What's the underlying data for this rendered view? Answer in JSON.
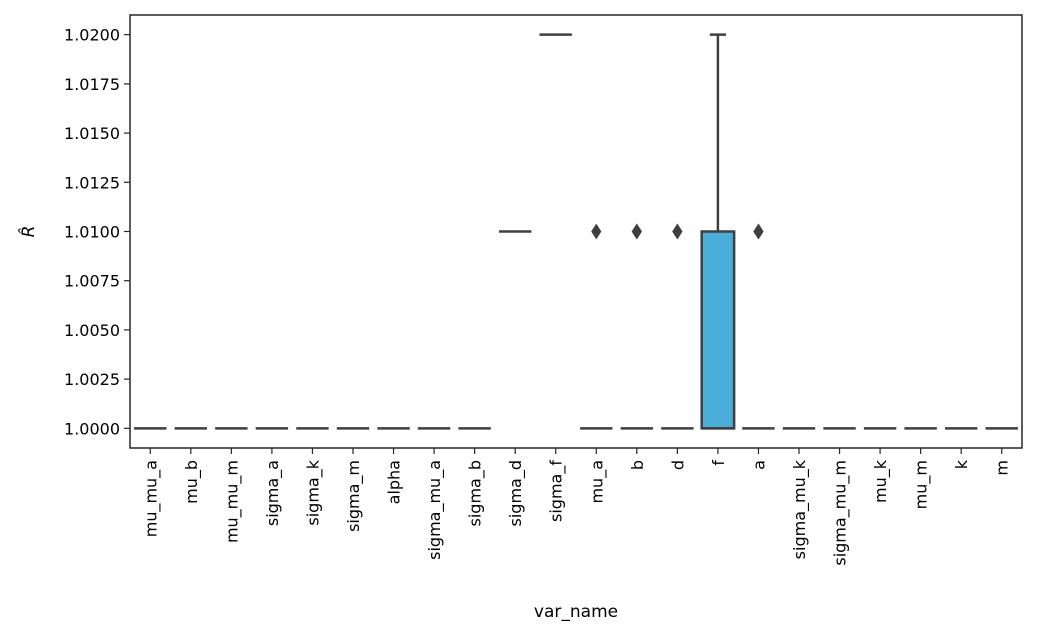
{
  "chart_data": {
    "type": "box",
    "xlabel": "var_name",
    "ylabel": "R̂",
    "ylim": [
      0.999,
      1.021
    ],
    "yticks": [
      "1.0000",
      "1.0025",
      "1.0050",
      "1.0075",
      "1.0100",
      "1.0125",
      "1.0150",
      "1.0175",
      "1.0200"
    ],
    "ytick_values": [
      1.0,
      1.0025,
      1.005,
      1.0075,
      1.01,
      1.0125,
      1.015,
      1.0175,
      1.02
    ],
    "box_color": "#4aaed9",
    "line_color": "#3f3f3f",
    "categories": [
      "mu_mu_a",
      "mu_b",
      "mu_mu_m",
      "sigma_a",
      "sigma_k",
      "sigma_m",
      "alpha",
      "sigma_mu_a",
      "sigma_b",
      "sigma_d",
      "sigma_f",
      "mu_a",
      "b",
      "d",
      "f",
      "a",
      "sigma_mu_k",
      "sigma_mu_m",
      "mu_k",
      "mu_m",
      "k",
      "m"
    ],
    "boxes": [
      {
        "category": "mu_mu_a",
        "q1": 1.0,
        "median": 1.0,
        "q3": 1.0,
        "whisker_low": 1.0,
        "whisker_high": 1.0,
        "outliers": []
      },
      {
        "category": "mu_b",
        "q1": 1.0,
        "median": 1.0,
        "q3": 1.0,
        "whisker_low": 1.0,
        "whisker_high": 1.0,
        "outliers": []
      },
      {
        "category": "mu_mu_m",
        "q1": 1.0,
        "median": 1.0,
        "q3": 1.0,
        "whisker_low": 1.0,
        "whisker_high": 1.0,
        "outliers": []
      },
      {
        "category": "sigma_a",
        "q1": 1.0,
        "median": 1.0,
        "q3": 1.0,
        "whisker_low": 1.0,
        "whisker_high": 1.0,
        "outliers": []
      },
      {
        "category": "sigma_k",
        "q1": 1.0,
        "median": 1.0,
        "q3": 1.0,
        "whisker_low": 1.0,
        "whisker_high": 1.0,
        "outliers": []
      },
      {
        "category": "sigma_m",
        "q1": 1.0,
        "median": 1.0,
        "q3": 1.0,
        "whisker_low": 1.0,
        "whisker_high": 1.0,
        "outliers": []
      },
      {
        "category": "alpha",
        "q1": 1.0,
        "median": 1.0,
        "q3": 1.0,
        "whisker_low": 1.0,
        "whisker_high": 1.0,
        "outliers": []
      },
      {
        "category": "sigma_mu_a",
        "q1": 1.0,
        "median": 1.0,
        "q3": 1.0,
        "whisker_low": 1.0,
        "whisker_high": 1.0,
        "outliers": []
      },
      {
        "category": "sigma_b",
        "q1": 1.0,
        "median": 1.0,
        "q3": 1.0,
        "whisker_low": 1.0,
        "whisker_high": 1.0,
        "outliers": []
      },
      {
        "category": "sigma_d",
        "q1": 1.01,
        "median": 1.01,
        "q3": 1.01,
        "whisker_low": 1.01,
        "whisker_high": 1.01,
        "outliers": []
      },
      {
        "category": "sigma_f",
        "q1": 1.02,
        "median": 1.02,
        "q3": 1.02,
        "whisker_low": 1.02,
        "whisker_high": 1.02,
        "outliers": []
      },
      {
        "category": "mu_a",
        "q1": 1.0,
        "median": 1.0,
        "q3": 1.0,
        "whisker_low": 1.0,
        "whisker_high": 1.0,
        "outliers": [
          1.01
        ]
      },
      {
        "category": "b",
        "q1": 1.0,
        "median": 1.0,
        "q3": 1.0,
        "whisker_low": 1.0,
        "whisker_high": 1.0,
        "outliers": [
          1.01,
          1.01
        ]
      },
      {
        "category": "d",
        "q1": 1.0,
        "median": 1.0,
        "q3": 1.0,
        "whisker_low": 1.0,
        "whisker_high": 1.0,
        "outliers": [
          1.01,
          1.01
        ]
      },
      {
        "category": "f",
        "q1": 1.0,
        "median": 1.0,
        "q3": 1.01,
        "whisker_low": 1.0,
        "whisker_high": 1.02,
        "outliers": []
      },
      {
        "category": "a",
        "q1": 1.0,
        "median": 1.0,
        "q3": 1.0,
        "whisker_low": 1.0,
        "whisker_high": 1.0,
        "outliers": [
          1.01,
          1.01
        ]
      },
      {
        "category": "sigma_mu_k",
        "q1": 1.0,
        "median": 1.0,
        "q3": 1.0,
        "whisker_low": 1.0,
        "whisker_high": 1.0,
        "outliers": []
      },
      {
        "category": "sigma_mu_m",
        "q1": 1.0,
        "median": 1.0,
        "q3": 1.0,
        "whisker_low": 1.0,
        "whisker_high": 1.0,
        "outliers": []
      },
      {
        "category": "mu_k",
        "q1": 1.0,
        "median": 1.0,
        "q3": 1.0,
        "whisker_low": 1.0,
        "whisker_high": 1.0,
        "outliers": []
      },
      {
        "category": "mu_m",
        "q1": 1.0,
        "median": 1.0,
        "q3": 1.0,
        "whisker_low": 1.0,
        "whisker_high": 1.0,
        "outliers": []
      },
      {
        "category": "k",
        "q1": 1.0,
        "median": 1.0,
        "q3": 1.0,
        "whisker_low": 1.0,
        "whisker_high": 1.0,
        "outliers": []
      },
      {
        "category": "m",
        "q1": 1.0,
        "median": 1.0,
        "q3": 1.0,
        "whisker_low": 1.0,
        "whisker_high": 1.0,
        "outliers": []
      }
    ],
    "grid": false,
    "legend": "none"
  }
}
